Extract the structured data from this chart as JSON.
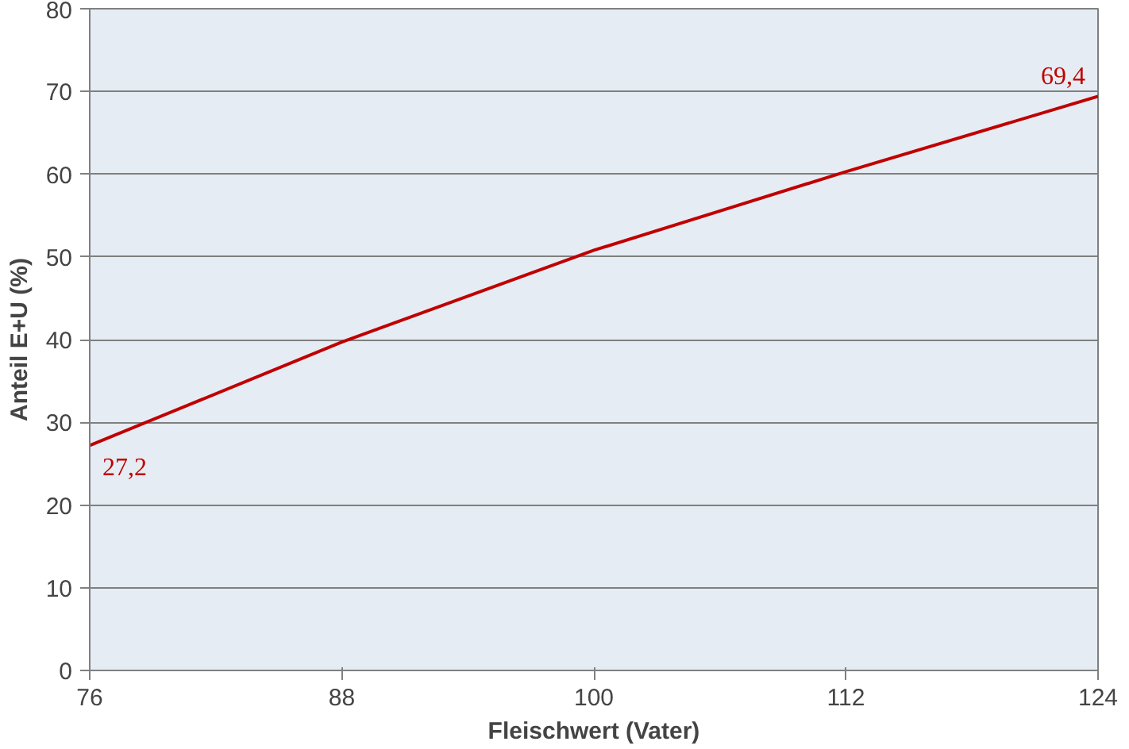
{
  "chart_data": {
    "type": "line",
    "xlabel": "Fleischwert (Vater)",
    "ylabel": "Anteil E+U (%)",
    "x": [
      76,
      88,
      100,
      112,
      124
    ],
    "series": [
      {
        "color": "#c00000",
        "values": [
          27.2,
          39.7,
          50.8,
          60.3,
          69.4
        ],
        "value_labels": [
          "27,2",
          null,
          null,
          null,
          "69,4"
        ]
      }
    ],
    "xlim": [
      76,
      124
    ],
    "xticks": [
      76,
      88,
      100,
      112,
      124
    ],
    "ylim": [
      0,
      80
    ],
    "yticks": [
      0,
      10,
      20,
      30,
      40,
      50,
      60,
      70,
      80
    ],
    "grid": "y",
    "marker": "none",
    "line_style": "solid"
  }
}
